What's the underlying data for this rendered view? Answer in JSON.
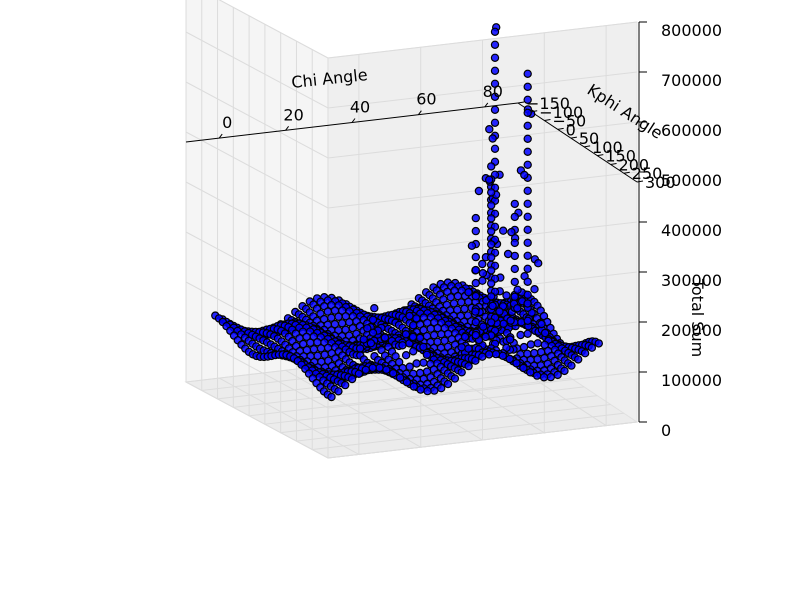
{
  "chart_data": {
    "type": "scatter",
    "projection": "3d",
    "xlabel": "Chi Angle",
    "ylabel": "Kphi Angle",
    "zlabel": "Total Sum",
    "x_ticks": [
      "0",
      "20",
      "40",
      "60",
      "80"
    ],
    "y_ticks": [
      "−150",
      "−100",
      "−50",
      "0",
      "50",
      "100",
      "150",
      "200",
      "250",
      "300"
    ],
    "z_ticks": [
      "0",
      "100000",
      "200000",
      "300000",
      "400000",
      "500000",
      "600000",
      "700000",
      "800000"
    ],
    "xlim": [
      -10,
      90
    ],
    "ylim": [
      -150,
      300
    ],
    "zlim": [
      0,
      800000
    ],
    "grid": true,
    "marker": "o",
    "marker_color": "#0000ff",
    "edge_color": "#000000",
    "peaks": [
      {
        "x": 55,
        "y": 180,
        "z": 780000
      },
      {
        "x": 68,
        "y": 150,
        "z": 680000
      },
      {
        "x": 52,
        "y": 200,
        "z": 520000
      },
      {
        "x": 48,
        "y": 190,
        "z": 420000
      },
      {
        "x": 60,
        "y": 110,
        "z": 430000
      },
      {
        "x": 70,
        "y": 80,
        "z": 390000
      },
      {
        "x": 30,
        "y": 170,
        "z": 210000
      },
      {
        "x": 22,
        "y": 120,
        "z": 200000
      }
    ]
  }
}
